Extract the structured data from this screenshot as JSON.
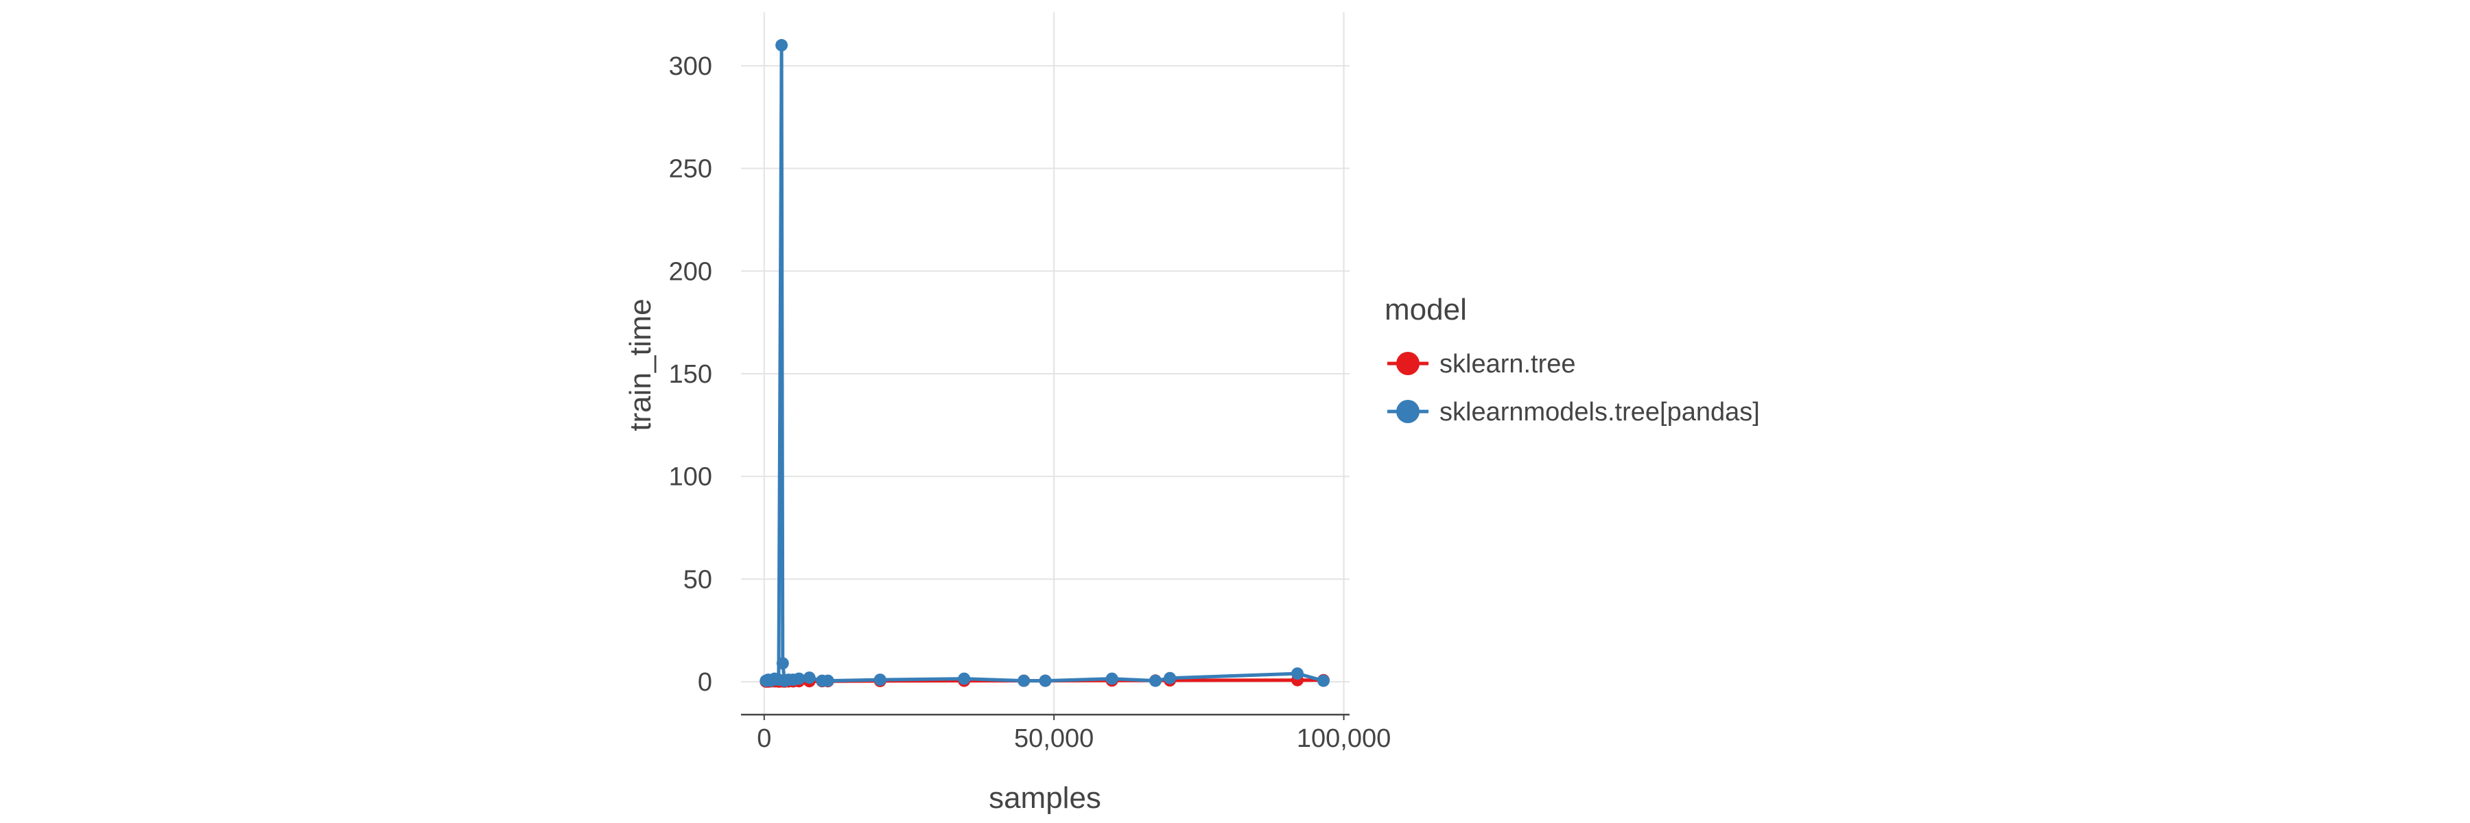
{
  "chart_data": {
    "type": "line",
    "xlabel": "samples",
    "ylabel": "train_time",
    "xlim": [
      -4000,
      101000
    ],
    "ylim": [
      -16,
      326
    ],
    "x_ticks": [
      0,
      50000,
      100000
    ],
    "x_tick_labels": [
      "0",
      "50,000",
      "100,000"
    ],
    "y_ticks": [
      0,
      50,
      100,
      150,
      200,
      250,
      300
    ],
    "y_tick_labels": [
      "0",
      "50",
      "100",
      "150",
      "200",
      "250",
      "300"
    ],
    "grid": true,
    "legend": {
      "title": "model",
      "placement": "right"
    },
    "series": [
      {
        "name": "sklearn.tree",
        "color": "#e41a1c",
        "points": [
          [
            300,
            0.1
          ],
          [
            700,
            0.1
          ],
          [
            1200,
            0.2
          ],
          [
            1800,
            0.2
          ],
          [
            2500,
            0.1
          ],
          [
            3000,
            0.2
          ],
          [
            3500,
            0.1
          ],
          [
            4200,
            0.2
          ],
          [
            5000,
            0.2
          ],
          [
            6000,
            0.3
          ],
          [
            7800,
            0.3
          ],
          [
            10000,
            0.3
          ],
          [
            11000,
            0.3
          ],
          [
            20000,
            0.4
          ],
          [
            34500,
            0.5
          ],
          [
            44800,
            0.5
          ],
          [
            48500,
            0.5
          ],
          [
            60000,
            0.6
          ],
          [
            67500,
            0.6
          ],
          [
            70000,
            0.7
          ],
          [
            92000,
            0.8
          ],
          [
            96500,
            0.8
          ]
        ]
      },
      {
        "name": "sklearnmodels.tree[pandas]",
        "color": "#377eb8",
        "points": [
          [
            300,
            0.5
          ],
          [
            700,
            1
          ],
          [
            1200,
            0.5
          ],
          [
            1800,
            1.5
          ],
          [
            2500,
            1
          ],
          [
            3000,
            310
          ],
          [
            3200,
            9
          ],
          [
            3500,
            0.5
          ],
          [
            4200,
            1
          ],
          [
            5000,
            1
          ],
          [
            6000,
            1.5
          ],
          [
            7800,
            2
          ],
          [
            10000,
            0.5
          ],
          [
            11000,
            0.5
          ],
          [
            20000,
            1
          ],
          [
            34500,
            1.5
          ],
          [
            44800,
            0.5
          ],
          [
            48500,
            0.5
          ],
          [
            60000,
            1.5
          ],
          [
            67500,
            0.5
          ],
          [
            70000,
            1.8
          ],
          [
            92000,
            4
          ],
          [
            96500,
            0.5
          ]
        ]
      }
    ]
  }
}
